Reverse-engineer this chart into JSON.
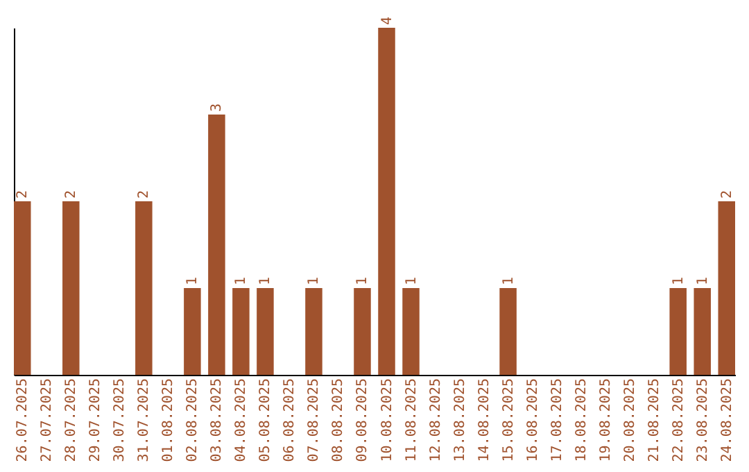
{
  "chart_data": {
    "type": "bar",
    "categories": [
      "26.07.2025",
      "27.07.2025",
      "28.07.2025",
      "29.07.2025",
      "30.07.2025",
      "31.07.2025",
      "01.08.2025",
      "02.08.2025",
      "03.08.2025",
      "04.08.2025",
      "05.08.2025",
      "06.08.2025",
      "07.08.2025",
      "08.08.2025",
      "09.08.2025",
      "10.08.2025",
      "11.08.2025",
      "12.08.2025",
      "13.08.2025",
      "14.08.2025",
      "15.08.2025",
      "16.08.2025",
      "17.08.2025",
      "18.08.2025",
      "19.08.2025",
      "20.08.2025",
      "21.08.2025",
      "22.08.2025",
      "23.08.2025",
      "24.08.2025"
    ],
    "values": [
      2,
      0,
      2,
      0,
      0,
      2,
      0,
      1,
      3,
      1,
      1,
      0,
      1,
      0,
      1,
      4,
      1,
      0,
      0,
      0,
      1,
      0,
      0,
      0,
      0,
      0,
      0,
      1,
      1,
      2
    ],
    "value_labels": [
      "2",
      null,
      "2",
      null,
      null,
      "2",
      null,
      "1",
      "3",
      "1",
      "1",
      null,
      "1",
      null,
      "1",
      "4",
      "1",
      null,
      null,
      null,
      "1",
      null,
      null,
      null,
      null,
      null,
      null,
      "1",
      "1",
      "2"
    ],
    "color": "#a0522d",
    "grid": false
  }
}
